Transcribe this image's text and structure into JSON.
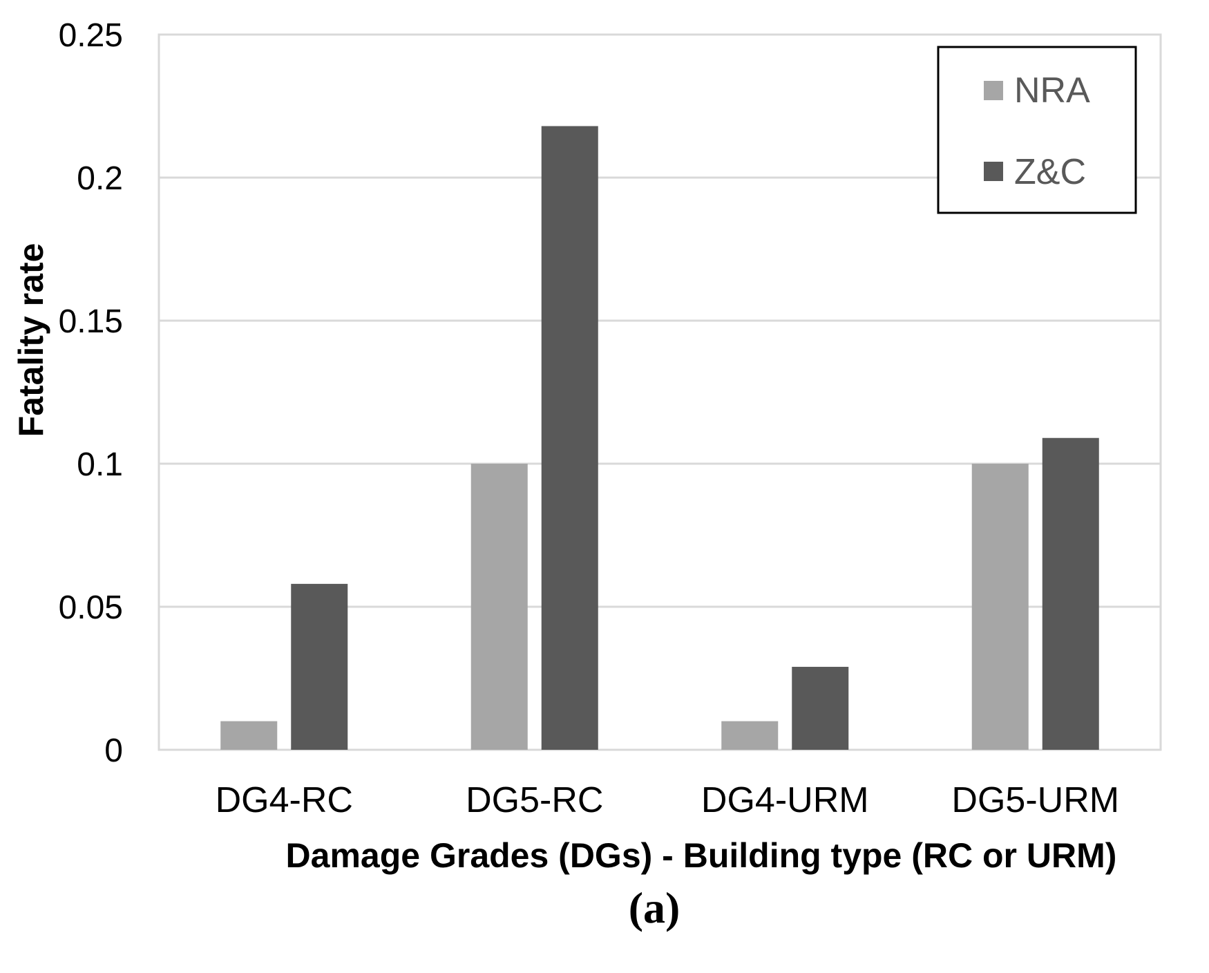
{
  "chart_data": {
    "type": "bar",
    "title": "",
    "categories": [
      "DG4-RC",
      "DG5-RC",
      "DG4-URM",
      "DG5-URM"
    ],
    "series": [
      {
        "name": "NRA",
        "values": [
          0.01,
          0.1,
          0.01,
          0.1
        ],
        "color": "#a6a6a6"
      },
      {
        "name": "Z&C",
        "values": [
          0.058,
          0.218,
          0.029,
          0.109
        ],
        "color": "#595959"
      }
    ],
    "xlabel": "Damage Grades (DGs) - Building type (RC or URM)",
    "ylabel": "Fatality rate",
    "ylim": [
      0,
      0.25
    ],
    "yticks": [
      "0",
      "0.05",
      "0.1",
      "0.15",
      "0.2",
      "0.25"
    ],
    "grid": true,
    "legend_position": "top-right",
    "caption": "(a)"
  }
}
